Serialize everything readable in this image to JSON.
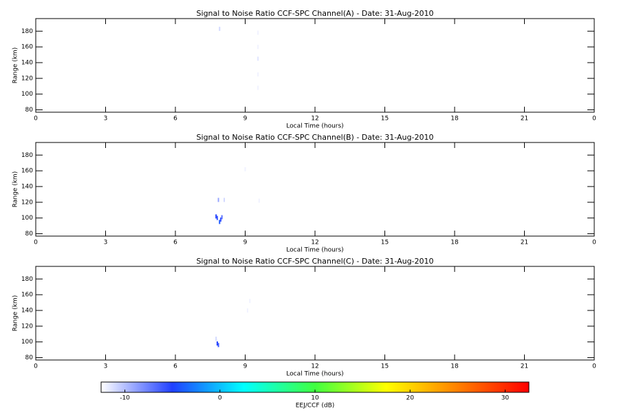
{
  "chart_data": [
    {
      "type": "scatter",
      "title": "Signal to Noise Ratio CCF-SPC Channel(A) - Date: 31-Aug-2010",
      "x_label": "Local Time (hours)",
      "y_label": "Range (km)",
      "xlim": [
        0,
        24
      ],
      "xticks": [
        0,
        3,
        6,
        9,
        12,
        15,
        18,
        21,
        {
          "value": 24,
          "label": "0"
        }
      ],
      "ylim": [
        77,
        196
      ],
      "yticks": [
        80,
        100,
        120,
        140,
        160,
        180
      ],
      "x": [
        7.9,
        9.55,
        9.55,
        9.55,
        9.55,
        9.55
      ],
      "y": [
        183,
        178,
        160,
        145,
        125,
        108
      ],
      "values": [
        -11,
        -12,
        -12,
        -11.5,
        -12,
        -12
      ]
    },
    {
      "type": "scatter",
      "title": "Signal to Noise Ratio CCF-SPC Channel(B) - Date: 31-Aug-2010",
      "x_label": "Local Time (hours)",
      "y_label": "Range (km)",
      "xlim": [
        0,
        24
      ],
      "xticks": [
        0,
        3,
        6,
        9,
        12,
        15,
        18,
        21,
        {
          "value": 24,
          "label": "0"
        }
      ],
      "ylim": [
        77,
        196
      ],
      "yticks": [
        80,
        100,
        120,
        140,
        160,
        180
      ],
      "x": [
        7.75,
        7.8,
        7.9,
        7.95,
        8.0,
        7.85,
        8.1,
        9.0,
        9.6
      ],
      "y": [
        102,
        100,
        95,
        98,
        101,
        123,
        123,
        162,
        122
      ],
      "values": [
        -5,
        -6,
        -4,
        -6,
        -7,
        -9,
        -11,
        -12,
        -12
      ]
    },
    {
      "type": "scatter",
      "title": "Signal to Noise Ratio CCF-SPC Channel(C) - Date: 31-Aug-2010",
      "x_label": "Local Time (hours)",
      "y_label": "Range (km)",
      "xlim": [
        0,
        24
      ],
      "xticks": [
        0,
        3,
        6,
        9,
        12,
        15,
        18,
        21,
        {
          "value": 24,
          "label": "0"
        }
      ],
      "ylim": [
        77,
        196
      ],
      "yticks": [
        80,
        100,
        120,
        140,
        160,
        180
      ],
      "x": [
        7.75,
        7.8,
        7.85,
        9.1,
        9.2
      ],
      "y": [
        104,
        98,
        96,
        140,
        152
      ],
      "values": [
        -11,
        -5,
        -6,
        -12,
        -12
      ]
    }
  ],
  "colorbar": {
    "label": "EEJ/CCF (dB)",
    "lim": [
      -12.5,
      32.5
    ],
    "ticks": [
      -10,
      0,
      10,
      20,
      30
    ],
    "colors": [
      "#ffffff",
      "#2040ff",
      "#00ffff",
      "#40ff40",
      "#ffff00",
      "#ff8000",
      "#ff0000"
    ]
  }
}
